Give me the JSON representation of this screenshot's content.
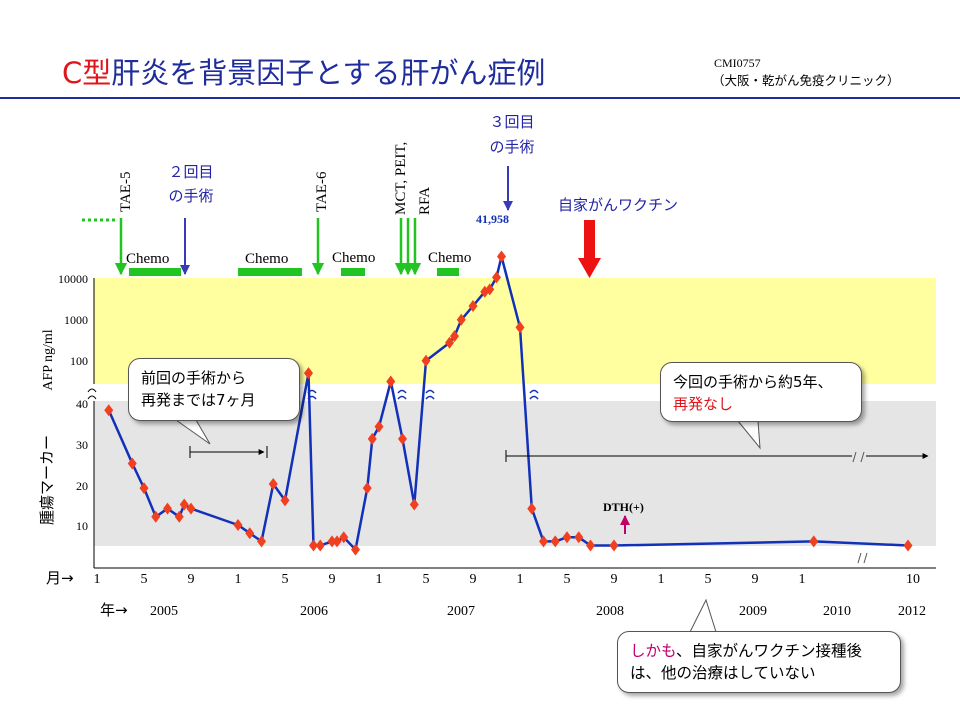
{
  "header": {
    "title_red": "C型",
    "title_rest": "肝炎を背景因子とする肝がん症例",
    "case_code": "CMI0757",
    "clinic": "（大阪・乾がん免疫クリニック）"
  },
  "chart_data": {
    "type": "line",
    "title": "",
    "ylabel_jp": "腫瘍マーカー",
    "ylabel_en": "AFP ng/ml",
    "xlabel_month": "月→",
    "xlabel_year": "年→",
    "y_ticks_low": [
      "10",
      "20",
      "30",
      "40"
    ],
    "y_ticks_high": [
      "100",
      "1000",
      "10000"
    ],
    "month_ticks": [
      "1",
      "5",
      "9",
      "1",
      "5",
      "9",
      "1",
      "5",
      "9",
      "1",
      "5",
      "9",
      "1",
      "5",
      "9",
      "1",
      "10"
    ],
    "year_labels": [
      "2005",
      "2006",
      "2007",
      "2008",
      "2009",
      "2010",
      "2012"
    ],
    "series": [
      {
        "color": "#1231b8",
        "points": [
          {
            "date": "2005-02",
            "afp": 38
          },
          {
            "date": "2005-04",
            "afp": 25
          },
          {
            "date": "2005-05",
            "afp": 19
          },
          {
            "date": "2005-06",
            "afp": 12
          },
          {
            "date": "2005-07",
            "afp": 14
          },
          {
            "date": "2005-08",
            "afp": 12
          },
          {
            "date": "2005-08",
            "afp": 15
          },
          {
            "date": "2005-09",
            "afp": 14
          },
          {
            "date": "2006-01",
            "afp": 10
          },
          {
            "date": "2006-02",
            "afp": 8
          },
          {
            "date": "2006-03",
            "afp": 6
          },
          {
            "date": "2006-04",
            "afp": 20
          },
          {
            "date": "2006-05",
            "afp": 16
          },
          {
            "date": "2006-07",
            "afp": 60
          },
          {
            "date": "2006-07",
            "afp": 5
          },
          {
            "date": "2006-08",
            "afp": 5
          },
          {
            "date": "2006-09",
            "afp": 6
          },
          {
            "date": "2006-09",
            "afp": 6
          },
          {
            "date": "2006-10",
            "afp": 7
          },
          {
            "date": "2006-11",
            "afp": 4
          },
          {
            "date": "2006-12",
            "afp": 19
          },
          {
            "date": "2006-12",
            "afp": 31
          },
          {
            "date": "2007-01",
            "afp": 34
          },
          {
            "date": "2007-02",
            "afp": 45
          },
          {
            "date": "2007-03",
            "afp": 31
          },
          {
            "date": "2007-04",
            "afp": 15
          },
          {
            "date": "2007-05",
            "afp": 120
          },
          {
            "date": "2007-07",
            "afp": 330
          },
          {
            "date": "2007-07",
            "afp": 480
          },
          {
            "date": "2007-08",
            "afp": 1200
          },
          {
            "date": "2007-09",
            "afp": 2600
          },
          {
            "date": "2007-10",
            "afp": 5800
          },
          {
            "date": "2007-10",
            "afp": 6600
          },
          {
            "date": "2007-11",
            "afp": 13000
          },
          {
            "date": "2007-11",
            "afp": 41958
          },
          {
            "date": "2008-01",
            "afp": 780
          },
          {
            "date": "2008-02",
            "afp": 14
          },
          {
            "date": "2008-03",
            "afp": 6
          },
          {
            "date": "2008-04",
            "afp": 6
          },
          {
            "date": "2008-05",
            "afp": 7
          },
          {
            "date": "2008-06",
            "afp": 7
          },
          {
            "date": "2008-07",
            "afp": 5
          },
          {
            "date": "2008-09",
            "afp": 5
          },
          {
            "date": "2010-02",
            "afp": 6
          },
          {
            "date": "2012-10",
            "afp": 5
          }
        ]
      }
    ],
    "peak_label": "41,958",
    "treatment_labels": {
      "tae5": "TAE-5",
      "tae6": "TAE-6",
      "mct": "MCT, PEIT,",
      "rfa": "RFA"
    },
    "chemo_label": "Chemo",
    "surgery2_line1": "２回目",
    "surgery2_line2": "の手術",
    "surgery3_line1": "３回目",
    "surgery3_line2": "の手術",
    "vaccine_label": "自家がんワクチン",
    "dth_label": "DTH(+)",
    "colors": {
      "high_band": "#ffff9f",
      "low_band": "#e5e5e5",
      "line": "#1231b8",
      "marker": "#f04020",
      "green": "#22c422",
      "blue_arrow": "#3a3ab8",
      "red_arrow": "#ee1111",
      "magenta": "#c0006a"
    }
  },
  "callouts": {
    "recurrence_line1": "前回の手術から",
    "recurrence_line2": "再発までは7ヶ月",
    "no_recurrence_line1": "今回の手術から約5年、",
    "no_recurrence_line2": "再発なし",
    "note_red": "しかも",
    "note_line1_rest": "、自家がんワクチン接種後",
    "note_line2": "は、他の治療はしていない"
  }
}
